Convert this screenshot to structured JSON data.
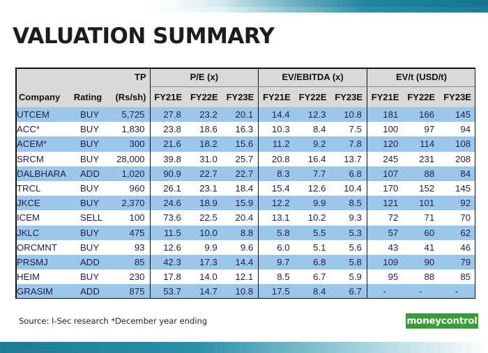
{
  "title": "VALUATION SUMMARY",
  "table": {
    "headers": {
      "tp_top": "TP",
      "pe_group": "P/E (x)",
      "ev_ebitda_group": "EV/EBITDA (x)",
      "evt_group": "EV/t (USD/t)",
      "company": "Company",
      "rating": "Rating",
      "tp_unit": "(Rs/sh)",
      "years": [
        "FY21E",
        "FY22E",
        "FY23E"
      ]
    },
    "rows": [
      [
        "UTCEM",
        "BUY",
        "5,725",
        "27.8",
        "23.2",
        "20.1",
        "14.4",
        "12.3",
        "10.8",
        "181",
        "166",
        "145"
      ],
      [
        "ACC*",
        "BUY",
        "1,830",
        "23.8",
        "18.6",
        "16.3",
        "10.3",
        "8.4",
        "7.5",
        "100",
        "97",
        "94"
      ],
      [
        "ACEM*",
        "BUY",
        "300",
        "21.6",
        "18.2",
        "15.6",
        "11.2",
        "9.2",
        "7.8",
        "120",
        "114",
        "108"
      ],
      [
        "SRCM",
        "BUY",
        "28,000",
        "39.8",
        "31.0",
        "25.7",
        "20.8",
        "16.4",
        "13.7",
        "245",
        "231",
        "208"
      ],
      [
        "DALBHARA",
        "ADD",
        "1,020",
        "90.9",
        "22.7",
        "22.7",
        "8.3",
        "7.7",
        "6.8",
        "107",
        "88",
        "84"
      ],
      [
        "TRCL",
        "BUY",
        "960",
        "26.1",
        "23.1",
        "18.4",
        "15.4",
        "12.6",
        "10.4",
        "170",
        "152",
        "145"
      ],
      [
        "JKCE",
        "BUY",
        "2,370",
        "24.6",
        "18.9",
        "15.9",
        "12.2",
        "9.9",
        "8.5",
        "121",
        "101",
        "92"
      ],
      [
        "ICEM",
        "SELL",
        "100",
        "73.6",
        "22.5",
        "20.4",
        "13.1",
        "10.2",
        "9.3",
        "72",
        "71",
        "70"
      ],
      [
        "JKLC",
        "BUY",
        "475",
        "11.5",
        "10.0",
        "8.8",
        "5.8",
        "5.5",
        "5.3",
        "57",
        "60",
        "62"
      ],
      [
        "ORCMNT",
        "BUY",
        "93",
        "12.6",
        "9.9",
        "9.6",
        "6.0",
        "5.1",
        "5.6",
        "43",
        "41",
        "46"
      ],
      [
        "PRSMJ",
        "ADD",
        "85",
        "42.3",
        "17.3",
        "14.4",
        "9.7",
        "6.8",
        "5.8",
        "109",
        "90",
        "79"
      ],
      [
        "HEIM",
        "BUY",
        "230",
        "17.8",
        "14.0",
        "12.1",
        "8.5",
        "6.7",
        "5.9",
        "95",
        "88",
        "85"
      ],
      [
        "GRASIM",
        "ADD",
        "875",
        "53.7",
        "14.7",
        "10.8",
        "17.5",
        "8.4",
        "6.7",
        "-",
        "-",
        "-"
      ]
    ]
  },
  "source": "Source: I-Sec research *December year ending",
  "logo": {
    "part1": "money",
    "part2": "control"
  },
  "colors": {
    "stripe": "#9cc7ea",
    "header": "#d9d9d9",
    "logo_bg": "#3c9a3c",
    "band": "#1d7c96"
  }
}
